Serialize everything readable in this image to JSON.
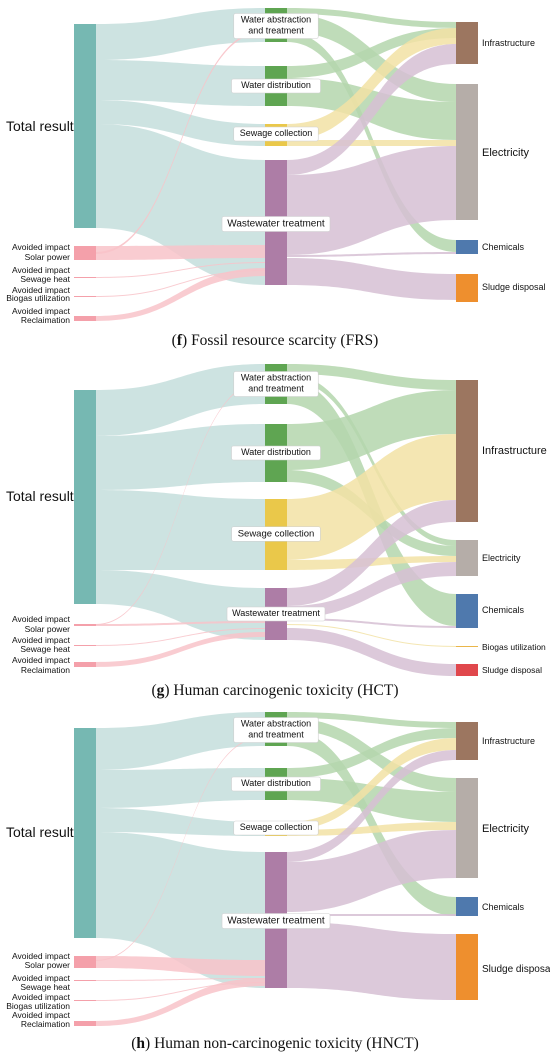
{
  "colors": {
    "total": "#76b8b2",
    "total_flow": "#c4dedc",
    "avoided": "#f4a0aa",
    "avoided_flow": "#f8c3c9",
    "water_abstraction": "#5fa552",
    "water_distribution": "#5fa552",
    "green_flow": "#b4d6ad",
    "sewage_collection": "#eac84a",
    "yellow_flow": "#f2e2a4",
    "wastewater_treatment": "#ad7da6",
    "purple_flow": "#d6bfd3",
    "infrastructure": "#9c7660",
    "electricity": "#b5ada8",
    "chemicals": "#4f79ad",
    "sludge_disposal": "#ee8f2e",
    "biogas_utilization": "#eab64a",
    "sludge_red": "#e0474c"
  },
  "panels": [
    {
      "id": "f",
      "caption_letter": "f",
      "caption_text": " Fossil resource scarcity (FRS)",
      "total_label": "Total result",
      "avoided_labels": [
        [
          "Avoided impact",
          "Solar power"
        ],
        [
          "Avoided impact",
          "Sewage heat"
        ],
        [
          "Avoided impact",
          "Biogas utilization"
        ],
        [
          "Avoided impact",
          "Reclaimation"
        ]
      ],
      "process_labels": {
        "water_abstraction": [
          "Water abstraction",
          "and treatment"
        ],
        "water_distribution": [
          "Water distribution"
        ],
        "sewage_collection": [
          "Sewage collection"
        ],
        "wastewater_treatment": [
          "Wastewater treatment"
        ]
      },
      "output_labels": {
        "infrastructure": "Infrastructure",
        "electricity": "Electricity",
        "chemicals": "Chemicals",
        "sludge_disposal": "Sludge disposal"
      }
    },
    {
      "id": "g",
      "caption_letter": "g",
      "caption_text": " Human carcinogenic toxicity (HCT)",
      "total_label": "Total result",
      "avoided_labels": [
        [
          "Avoided impact",
          "Solar power"
        ],
        [
          "Avoided impact",
          "Sewage heat"
        ],
        [
          "Avoided impact",
          "Reclaimation"
        ]
      ],
      "process_labels": {
        "water_abstraction": [
          "Water abstraction",
          "and treatment"
        ],
        "water_distribution": [
          "Water distribution"
        ],
        "sewage_collection": [
          "Sewage collection"
        ],
        "wastewater_treatment": [
          "Wastewater treatment"
        ]
      },
      "output_labels": {
        "infrastructure": "Infrastructure",
        "electricity": "Electricity",
        "chemicals": "Chemicals",
        "biogas_utilization": "Biogas utilization",
        "sludge_disposal": "Sludge disposal"
      }
    },
    {
      "id": "h",
      "caption_letter": "h",
      "caption_text": " Human non-carcinogenic toxicity (HNCT)",
      "total_label": "Total result",
      "avoided_labels": [
        [
          "Avoided impact",
          "Solar power"
        ],
        [
          "Avoided impact",
          "Sewage heat"
        ],
        [
          "Avoided impact",
          "Biogas utilization"
        ],
        [
          "Avoided impact",
          "Reclaimation"
        ]
      ],
      "process_labels": {
        "water_abstraction": [
          "Water abstraction",
          "and treatment"
        ],
        "water_distribution": [
          "Water distribution"
        ],
        "sewage_collection": [
          "Sewage collection"
        ],
        "wastewater_treatment": [
          "Wastewater treatment"
        ]
      },
      "output_labels": {
        "infrastructure": "Infrastructure",
        "electricity": "Electricity",
        "chemicals": "Chemicals",
        "sludge_disposal": "Sludge disposal"
      }
    }
  ]
}
